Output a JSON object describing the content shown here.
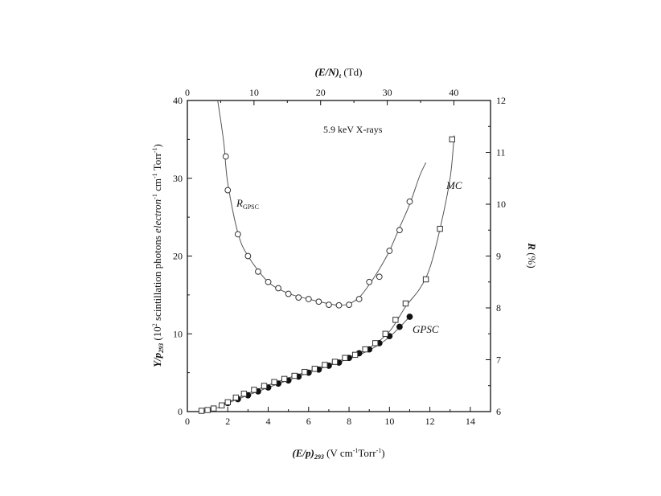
{
  "chart_data": {
    "type": "scatter",
    "annotation": "5.9 keV X-rays",
    "x_bottom": {
      "label": "(E/p)",
      "label_sub": "293",
      "label_unit": " (V cm",
      "label_unit_sup": "-1",
      "label_unit_tail": "Torr",
      "label_unit_sup2": "-1",
      "label_unit_close": ")",
      "range": [
        0,
        15
      ],
      "ticks": [
        0,
        2,
        4,
        6,
        8,
        10,
        12,
        14
      ]
    },
    "x_top": {
      "label": "(E/N)",
      "label_sub": "t",
      "label_unit": " (Td)",
      "range": [
        0,
        45.5
      ],
      "ticks": [
        0,
        10,
        20,
        30,
        40
      ]
    },
    "y_left": {
      "label": "Y/p",
      "label_sub": "293",
      "label_unit": " (10",
      "label_unit_sup": "2",
      "label_unit_tail": " scintillation photons ",
      "label_unit_italic": "electron",
      "label_unit_sup2": "-1",
      "label_unit_tail2": " cm",
      "label_unit_sup3": "-1",
      "label_unit_tail3": " Torr",
      "label_unit_sup4": "-1",
      "label_unit_close": ")",
      "range": [
        0,
        40
      ],
      "ticks": [
        0,
        10,
        20,
        30,
        40
      ]
    },
    "y_right": {
      "label": "R",
      "label_unit": " (%)",
      "range": [
        6,
        12
      ],
      "ticks": [
        6,
        7,
        8,
        9,
        10,
        11,
        12
      ]
    },
    "series": [
      {
        "name": "GPSC",
        "axis": "left",
        "marker": "filled-circle",
        "points": [
          [
            2.0,
            1.1
          ],
          [
            2.5,
            1.6
          ],
          [
            3.0,
            2.1
          ],
          [
            3.5,
            2.6
          ],
          [
            4.0,
            3.1
          ],
          [
            4.5,
            3.6
          ],
          [
            5.0,
            4.0
          ],
          [
            5.5,
            4.5
          ],
          [
            6.0,
            5.0
          ],
          [
            6.5,
            5.4
          ],
          [
            7.0,
            5.9
          ],
          [
            7.5,
            6.3
          ],
          [
            8.0,
            6.9
          ],
          [
            8.5,
            7.5
          ],
          [
            9.0,
            8.0
          ],
          [
            9.5,
            8.8
          ],
          [
            10.0,
            9.7
          ],
          [
            10.5,
            10.9
          ],
          [
            11.0,
            12.2
          ]
        ]
      },
      {
        "name": "MC",
        "axis": "left",
        "marker": "open-square",
        "points": [
          [
            0.7,
            0.1
          ],
          [
            1.0,
            0.2
          ],
          [
            1.3,
            0.4
          ],
          [
            1.7,
            0.8
          ],
          [
            2.0,
            1.2
          ],
          [
            2.4,
            1.8
          ],
          [
            2.8,
            2.3
          ],
          [
            3.3,
            2.8
          ],
          [
            3.8,
            3.3
          ],
          [
            4.3,
            3.8
          ],
          [
            4.8,
            4.2
          ],
          [
            5.3,
            4.6
          ],
          [
            5.8,
            5.1
          ],
          [
            6.3,
            5.5
          ],
          [
            6.8,
            6.0
          ],
          [
            7.3,
            6.4
          ],
          [
            7.8,
            6.9
          ],
          [
            8.3,
            7.3
          ],
          [
            8.8,
            8.0
          ],
          [
            9.3,
            8.8
          ],
          [
            9.8,
            10.0
          ],
          [
            10.3,
            11.8
          ],
          [
            10.8,
            13.9
          ],
          [
            11.8,
            17.0
          ],
          [
            12.5,
            23.5
          ],
          [
            13.1,
            35.0
          ]
        ]
      },
      {
        "name": "R",
        "label": "R",
        "label_sub": "GPSC",
        "axis": "right",
        "marker": "open-circle",
        "points": [
          [
            1.9,
            10.92
          ],
          [
            2.0,
            10.27
          ],
          [
            2.5,
            9.42
          ],
          [
            3.0,
            9.0
          ],
          [
            3.5,
            8.7
          ],
          [
            4.0,
            8.5
          ],
          [
            4.5,
            8.38
          ],
          [
            5.0,
            8.27
          ],
          [
            5.5,
            8.2
          ],
          [
            6.0,
            8.17
          ],
          [
            6.5,
            8.12
          ],
          [
            7.0,
            8.06
          ],
          [
            7.5,
            8.05
          ],
          [
            8.0,
            8.06
          ],
          [
            8.5,
            8.17
          ],
          [
            9.0,
            8.5
          ],
          [
            9.5,
            8.6
          ],
          [
            10.0,
            9.1
          ],
          [
            10.5,
            9.5
          ],
          [
            11.0,
            10.05
          ]
        ]
      }
    ],
    "curves": [
      {
        "name": "MC-fit",
        "axis": "left",
        "points": [
          [
            0.7,
            0.1
          ],
          [
            1.5,
            0.5
          ],
          [
            2.0,
            1.2
          ],
          [
            4.0,
            3.4
          ],
          [
            6.0,
            5.2
          ],
          [
            8.0,
            7.0
          ],
          [
            9.0,
            8.2
          ],
          [
            10.0,
            10.3
          ],
          [
            10.8,
            13.5
          ],
          [
            11.5,
            15.8
          ],
          [
            12.0,
            18.5
          ],
          [
            12.5,
            23.5
          ],
          [
            13.0,
            30.0
          ],
          [
            13.2,
            35.5
          ]
        ]
      },
      {
        "name": "GPSC-fit",
        "axis": "left",
        "points": [
          [
            1.8,
            0.9
          ],
          [
            4.0,
            3.1
          ],
          [
            6.0,
            5.0
          ],
          [
            8.0,
            6.8
          ],
          [
            9.0,
            7.9
          ],
          [
            10.0,
            9.6
          ],
          [
            11.0,
            12.2
          ]
        ]
      },
      {
        "name": "R-fit",
        "axis": "right",
        "points": [
          [
            1.5,
            12.0
          ],
          [
            1.8,
            11.2
          ],
          [
            2.0,
            10.4
          ],
          [
            2.5,
            9.45
          ],
          [
            3.0,
            9.0
          ],
          [
            4.0,
            8.5
          ],
          [
            5.0,
            8.28
          ],
          [
            6.0,
            8.17
          ],
          [
            7.0,
            8.08
          ],
          [
            7.5,
            8.05
          ],
          [
            8.0,
            8.08
          ],
          [
            8.5,
            8.2
          ],
          [
            9.0,
            8.45
          ],
          [
            9.5,
            8.75
          ],
          [
            10.0,
            9.1
          ],
          [
            10.5,
            9.55
          ],
          [
            11.0,
            10.0
          ],
          [
            11.5,
            10.55
          ],
          [
            11.8,
            10.8
          ]
        ]
      }
    ],
    "labels": {
      "mc": "MC",
      "gpsc": "GPSC"
    },
    "grid": false,
    "legend": "none"
  }
}
